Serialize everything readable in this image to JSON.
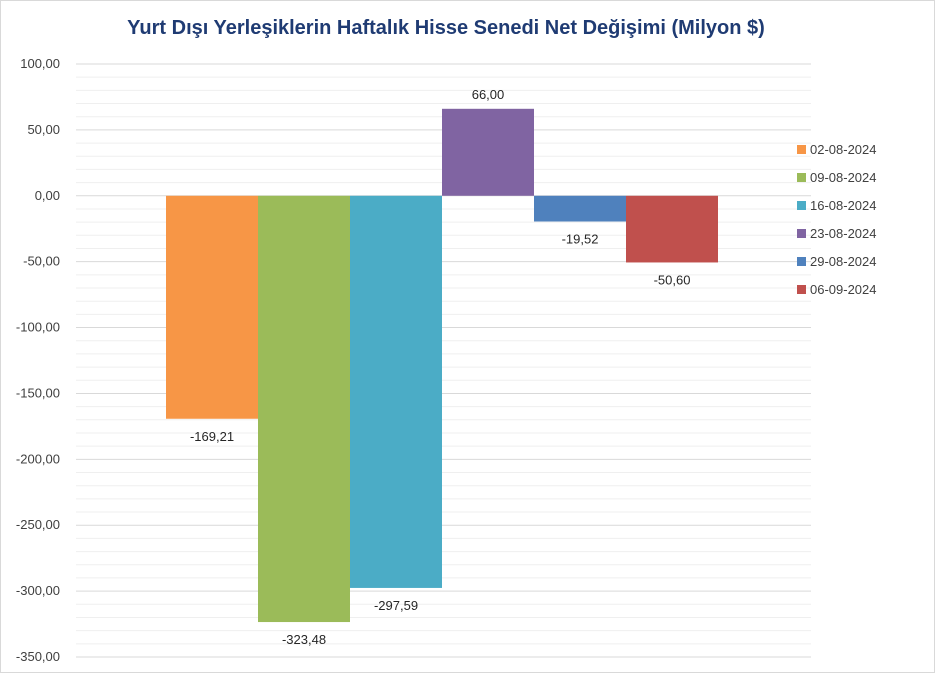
{
  "chart_data": {
    "type": "bar",
    "title": "Yurt Dışı Yerleşiklerin Haftalık Hisse Senedi Net Değişimi (Milyon $)",
    "xlabel": "",
    "ylabel": "",
    "ylim": [
      -350,
      100
    ],
    "y_ticks": [
      100,
      50,
      0,
      -50,
      -100,
      -150,
      -200,
      -250,
      -300,
      -350
    ],
    "y_tick_labels": [
      "100,00",
      "50,00",
      "0,00",
      "-50,00",
      "-100,00",
      "-150,00",
      "-200,00",
      "-250,00",
      "-300,00",
      "-350,00"
    ],
    "grid": true,
    "legend_position": "right",
    "series": [
      {
        "name": "02-08-2024",
        "value": -169.21,
        "label": "-169,21",
        "color": "#f79646"
      },
      {
        "name": "09-08-2024",
        "value": -323.48,
        "label": "-323,48",
        "color": "#9bbb59"
      },
      {
        "name": "16-08-2024",
        "value": -297.59,
        "label": "-297,59",
        "color": "#4bacc6"
      },
      {
        "name": "23-08-2024",
        "value": 66.0,
        "label": "66,00",
        "color": "#8064a2"
      },
      {
        "name": "29-08-2024",
        "value": -19.52,
        "label": "-19,52",
        "color": "#4f81bd"
      },
      {
        "name": "06-09-2024",
        "value": -50.6,
        "label": "-50,60",
        "color": "#c0504d"
      }
    ]
  }
}
